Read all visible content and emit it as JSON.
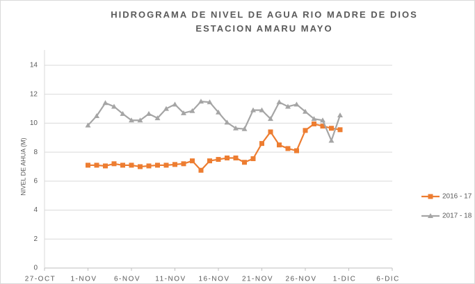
{
  "chart_data": {
    "type": "line",
    "title": "HIDROGRAMA DE NIVEL DE AGUA RIO MADRE DE DIOS",
    "subtitle": "ESTACION AMARU MAYO",
    "y_label": "NIVEL DE AHUA (M)",
    "x": [
      "11-01",
      "11-02",
      "11-03",
      "11-04",
      "11-05",
      "11-06",
      "11-07",
      "11-08",
      "11-09",
      "11-10",
      "11-11",
      "11-12",
      "11-13",
      "11-14",
      "11-15",
      "11-16",
      "11-17",
      "11-18",
      "11-19",
      "11-20",
      "11-21",
      "11-22",
      "11-23",
      "11-24",
      "11-25",
      "11-26",
      "11-27",
      "11-28",
      "11-29",
      "11-30"
    ],
    "series": [
      {
        "name": "2016 - 17",
        "color": "#ed7d31",
        "marker": "square",
        "values": [
          7.1,
          7.1,
          7.05,
          7.2,
          7.1,
          7.1,
          7.0,
          7.05,
          7.1,
          7.1,
          7.15,
          7.2,
          7.4,
          6.75,
          7.4,
          7.5,
          7.6,
          7.6,
          7.3,
          7.55,
          8.6,
          9.4,
          8.5,
          8.25,
          8.1,
          9.5,
          9.95,
          9.8,
          9.65,
          9.55
        ]
      },
      {
        "name": "2017 - 18",
        "color": "#a5a5a5",
        "marker": "triangle",
        "values": [
          9.85,
          10.5,
          11.4,
          11.15,
          10.65,
          10.2,
          10.2,
          10.65,
          10.35,
          11.0,
          11.3,
          10.7,
          10.85,
          11.5,
          11.45,
          10.75,
          10.05,
          9.65,
          9.6,
          10.9,
          10.9,
          10.3,
          11.45,
          11.15,
          11.3,
          10.8,
          10.3,
          10.2,
          8.8,
          10.55
        ]
      }
    ],
    "xlim": [
      "10-27",
      "12-06"
    ],
    "xticks": [
      {
        "value": "10-27",
        "label": "27-OCT"
      },
      {
        "value": "11-01",
        "label": "1-NOV"
      },
      {
        "value": "11-06",
        "label": "6-NOV"
      },
      {
        "value": "11-11",
        "label": "11-NOV"
      },
      {
        "value": "11-16",
        "label": "16-NOV"
      },
      {
        "value": "11-21",
        "label": "21-NOV"
      },
      {
        "value": "11-26",
        "label": "26-NOV"
      },
      {
        "value": "12-01",
        "label": "1-DIC"
      },
      {
        "value": "12-06",
        "label": "6-DIC"
      }
    ],
    "ylim": [
      0,
      14
    ],
    "yticks": [
      0,
      2,
      4,
      6,
      8,
      10,
      12,
      14
    ],
    "grid": true,
    "legend": "right"
  }
}
